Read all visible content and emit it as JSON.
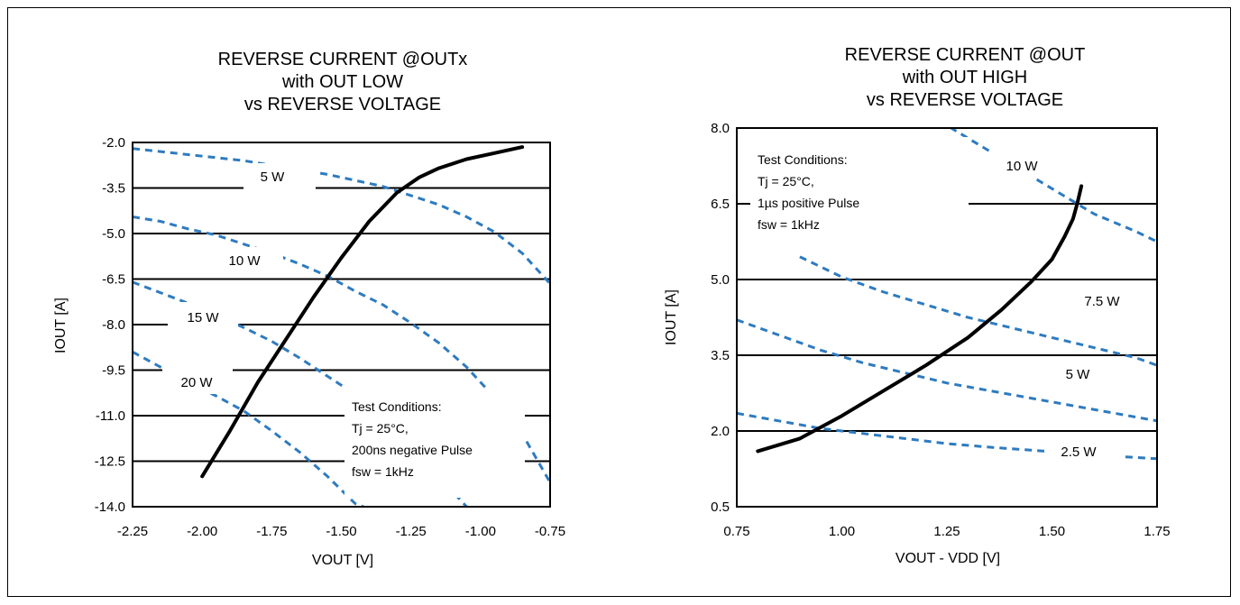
{
  "chart_data": [
    {
      "type": "line",
      "title_lines": [
        "REVERSE CURRENT @OUTx",
        "with OUT LOW",
        "vs REVERSE VOLTAGE"
      ],
      "xlabel": "VOUT [V]",
      "ylabel": "IOUT [A]",
      "xlim": [
        -2.25,
        -0.75
      ],
      "ylim": [
        -14.0,
        -2.0
      ],
      "x_ticks": [
        -2.25,
        -2.0,
        -1.75,
        -1.5,
        -1.25,
        -1.0,
        -0.75
      ],
      "x_tick_labels": [
        "-2.25",
        "-2.00",
        "-1.75",
        "-1.50",
        "-1.25",
        "-1.00",
        "-0.75"
      ],
      "y_ticks": [
        -2.0,
        -3.5,
        -5.0,
        -6.5,
        -8.0,
        -9.5,
        -11.0,
        -12.5,
        -14.0
      ],
      "y_tick_labels": [
        "-2.0",
        "-3.5",
        "-5.0",
        "-6.5",
        "-8.0",
        "-9.5",
        "-11.0",
        "-12.5",
        "-14.0"
      ],
      "grid": "horizontal",
      "series": [
        {
          "style": "solid",
          "color": "#000000",
          "x": [
            -2.0,
            -1.9,
            -1.8,
            -1.7,
            -1.6,
            -1.5,
            -1.4,
            -1.3,
            -1.22,
            -1.15,
            -1.05,
            -0.95,
            -0.85
          ],
          "y": [
            -13.0,
            -11.5,
            -9.9,
            -8.5,
            -7.1,
            -5.8,
            -4.6,
            -3.65,
            -3.15,
            -2.85,
            -2.55,
            -2.35,
            -2.15
          ]
        }
      ],
      "power_curves": [
        {
          "label": "5 W",
          "x": [
            -2.25,
            -2.15,
            -2.05,
            -1.95,
            -1.85,
            -1.75,
            -1.65,
            -1.55,
            -1.45,
            -1.35,
            -1.25,
            -1.15,
            -1.05,
            -0.95,
            -0.85,
            -0.75
          ],
          "y": [
            -2.2,
            -2.3,
            -2.4,
            -2.5,
            -2.6,
            -2.75,
            -2.9,
            -3.05,
            -3.25,
            -3.45,
            -3.75,
            -4.05,
            -4.45,
            -4.95,
            -5.65,
            -6.65
          ]
        },
        {
          "label": "10 W",
          "x": [
            -2.25,
            -2.15,
            -2.05,
            -1.95,
            -1.85,
            -1.75,
            -1.65,
            -1.55,
            -1.45,
            -1.35,
            -1.25,
            -1.15,
            -1.05,
            -0.95,
            -0.85,
            -0.75
          ],
          "y": [
            -4.45,
            -4.6,
            -4.85,
            -5.05,
            -5.35,
            -5.65,
            -6.0,
            -6.4,
            -6.9,
            -7.35,
            -7.95,
            -8.6,
            -9.4,
            -10.4,
            -11.6,
            -13.2
          ]
        },
        {
          "label": "15 W",
          "x": [
            -2.25,
            -2.15,
            -2.05,
            -1.95,
            -1.85,
            -1.75,
            -1.65,
            -1.55,
            -1.45,
            -1.35,
            -1.25,
            -1.15,
            -1.05
          ],
          "y": [
            -6.6,
            -6.95,
            -7.3,
            -7.7,
            -8.1,
            -8.55,
            -9.1,
            -9.7,
            -10.3,
            -11.1,
            -12.0,
            -13.0,
            -14.0
          ]
        },
        {
          "label": "20 W",
          "x": [
            -2.25,
            -2.15,
            -2.05,
            -1.95,
            -1.85,
            -1.75,
            -1.65,
            -1.55,
            -1.45,
            -1.42
          ],
          "y": [
            -8.9,
            -9.4,
            -9.9,
            -10.35,
            -10.85,
            -11.5,
            -12.2,
            -13.0,
            -13.9,
            -14.0
          ]
        }
      ],
      "power_labels": [
        "5 W",
        "10 W",
        "15 W",
        "20 W"
      ],
      "note_lines": [
        "Test Conditions:",
        "Tj = 25°C,",
        "200ns negative Pulse",
        "fsw = 1kHz"
      ]
    },
    {
      "type": "line",
      "title_lines": [
        "REVERSE CURRENT @OUT",
        "with OUT HIGH",
        "vs REVERSE VOLTAGE"
      ],
      "xlabel": "VOUT - VDD [V]",
      "ylabel": "IOUT [A]",
      "xlim": [
        0.75,
        1.75
      ],
      "ylim": [
        0.5,
        8.0
      ],
      "x_ticks": [
        0.75,
        1.0,
        1.25,
        1.5,
        1.75
      ],
      "x_tick_labels": [
        "0.75",
        "1.00",
        "1.25",
        "1.50",
        "1.75"
      ],
      "y_ticks": [
        0.5,
        2.0,
        3.5,
        5.0,
        6.5,
        8.0
      ],
      "y_tick_labels": [
        "0.5",
        "2.0",
        "3.5",
        "5.0",
        "6.5",
        "8.0"
      ],
      "grid": "horizontal",
      "series": [
        {
          "style": "solid",
          "color": "#000000",
          "x": [
            0.8,
            0.9,
            1.0,
            1.1,
            1.2,
            1.3,
            1.38,
            1.45,
            1.5,
            1.53,
            1.55,
            1.56,
            1.57
          ],
          "y": [
            1.6,
            1.85,
            2.3,
            2.8,
            3.3,
            3.85,
            4.4,
            4.95,
            5.4,
            5.85,
            6.2,
            6.5,
            6.85
          ]
        }
      ],
      "power_curves": [
        {
          "label": "10 W",
          "x": [
            0.75,
            0.8,
            0.85,
            0.9,
            0.95,
            1.0,
            1.1,
            1.2,
            1.3,
            1.4,
            1.5,
            1.6,
            1.7,
            1.75
          ],
          "y": [
            12.5,
            11.8,
            11.2,
            10.6,
            10.1,
            9.6,
            8.9,
            8.3,
            7.8,
            7.3,
            6.8,
            6.3,
            5.95,
            5.75
          ]
        },
        {
          "label": "7.5 W",
          "x": [
            0.9,
            0.95,
            1.0,
            1.1,
            1.2,
            1.3,
            1.4,
            1.5,
            1.6,
            1.7,
            1.75
          ],
          "y": [
            5.45,
            5.25,
            5.05,
            4.75,
            4.5,
            4.25,
            4.05,
            3.85,
            3.65,
            3.45,
            3.3
          ]
        },
        {
          "label": "5 W",
          "x": [
            0.75,
            0.85,
            0.95,
            1.05,
            1.15,
            1.25,
            1.35,
            1.45,
            1.55,
            1.65,
            1.75
          ],
          "y": [
            4.2,
            3.9,
            3.6,
            3.35,
            3.15,
            2.95,
            2.8,
            2.65,
            2.5,
            2.35,
            2.2
          ]
        },
        {
          "label": "2.5 W",
          "x": [
            0.75,
            0.85,
            0.95,
            1.05,
            1.15,
            1.25,
            1.35,
            1.45,
            1.55,
            1.65,
            1.75
          ],
          "y": [
            2.35,
            2.2,
            2.05,
            1.95,
            1.85,
            1.75,
            1.68,
            1.62,
            1.56,
            1.5,
            1.45
          ]
        }
      ],
      "power_labels": [
        "10 W",
        "7.5 W",
        "5 W",
        "2.5 W"
      ],
      "note_lines": [
        "Test Conditions:",
        "Tj = 25°C,",
        "1µs positive Pulse",
        "fsw = 1kHz"
      ]
    }
  ],
  "colors": {
    "curve": "#000000",
    "power_curve": "#2E7BBF",
    "grid": "#000000",
    "background": "#FFFFFF"
  }
}
